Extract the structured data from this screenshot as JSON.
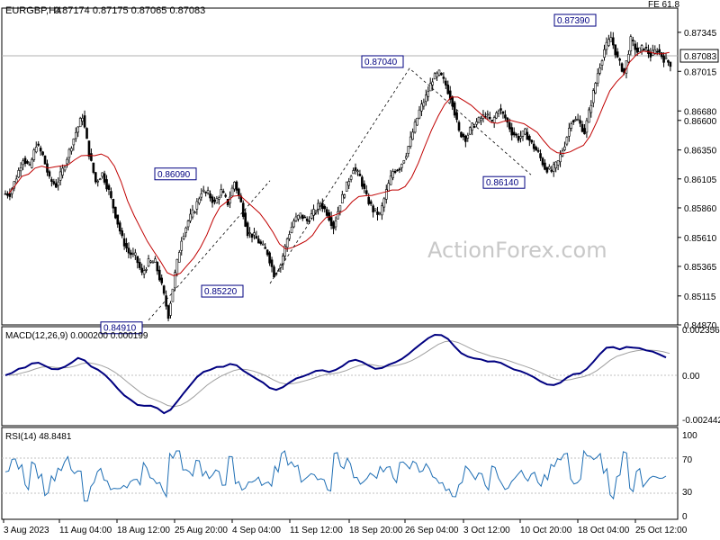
{
  "header": {
    "symbol": "EURGBP,H4",
    "ohlc": "0.87174 0.87175 0.87065 0.87083",
    "fe_label": "FE 61.8"
  },
  "watermark": "ActionForex.com",
  "price_axis": {
    "ticks": [
      "0.87345",
      "0.87015",
      "0.86680",
      "0.86600",
      "0.86350",
      "0.86105",
      "0.85860",
      "0.85610",
      "0.85365",
      "0.85115",
      "0.84870"
    ],
    "tick_values": [
      0.87345,
      0.87015,
      0.8668,
      0.866,
      0.8635,
      0.86105,
      0.8586,
      0.8561,
      0.85365,
      0.85115,
      0.8487
    ],
    "current_price": "0.87083",
    "reference_line": 0.87083
  },
  "date_axis": {
    "labels": [
      "3 Aug 2023",
      "11 Aug 04:00",
      "18 Aug 12:00",
      "25 Aug 20:00",
      "4 Sep 04:00",
      "11 Sep 12:00",
      "18 Sep 20:00",
      "26 Sep 04:00",
      "3 Oct 12:00",
      "10 Oct 20:00",
      "18 Oct 04:00",
      "25 Oct 12:00"
    ]
  },
  "annotations": [
    {
      "text": "0.84910",
      "price": 0.8491
    },
    {
      "text": "0.86090",
      "price": 0.8609
    },
    {
      "text": "0.85220",
      "price": 0.8522
    },
    {
      "text": "0.87040",
      "price": 0.8704
    },
    {
      "text": "0.86140",
      "price": 0.8614
    },
    {
      "text": "0.87390",
      "price": 0.8739
    }
  ],
  "macd": {
    "label": "MACD(12,26,9) 0.000200 0.000199",
    "ticks": [
      "0.002356",
      "0.00",
      "-0.002442"
    ]
  },
  "rsi": {
    "label": "RSI(14) 48.8481",
    "ticks": [
      "100",
      "70",
      "30",
      "0"
    ]
  },
  "colors": {
    "ma": "#c00000",
    "macd": "#000080",
    "signal": "#a0a0a0",
    "rsi": "#1e6eb4",
    "candle": "#000000",
    "annotation": "#000080"
  },
  "chart_data": {
    "type": "candlestick",
    "title": "EURGBP,H4",
    "ylim": [
      0.8487,
      0.8755
    ],
    "swing_points": [
      {
        "label": "0.84910",
        "y": 0.8491
      },
      {
        "label": "0.86090",
        "y": 0.8609
      },
      {
        "label": "0.85220",
        "y": 0.8522
      },
      {
        "label": "0.87040",
        "y": 0.8704
      },
      {
        "label": "0.86140",
        "y": 0.8614
      },
      {
        "label": "0.87390",
        "y": 0.8739
      }
    ],
    "close_path": [
      0.8598,
      0.8612,
      0.8628,
      0.862,
      0.864,
      0.863,
      0.861,
      0.8605,
      0.8618,
      0.8634,
      0.865,
      0.8664,
      0.8632,
      0.8608,
      0.8615,
      0.86,
      0.858,
      0.856,
      0.8548,
      0.8545,
      0.853,
      0.854,
      0.854,
      0.852,
      0.8495,
      0.853,
      0.856,
      0.8575,
      0.8585,
      0.86,
      0.8598,
      0.859,
      0.86,
      0.859,
      0.8608,
      0.859,
      0.8565,
      0.8562,
      0.8555,
      0.8548,
      0.853,
      0.8538,
      0.856,
      0.8575,
      0.858,
      0.8575,
      0.8582,
      0.859,
      0.8582,
      0.857,
      0.859,
      0.8605,
      0.862,
      0.8612,
      0.8595,
      0.8584,
      0.858,
      0.86,
      0.8617,
      0.862,
      0.8632,
      0.865,
      0.8668,
      0.868,
      0.8695,
      0.87,
      0.869,
      0.8675,
      0.865,
      0.8645,
      0.8655,
      0.866,
      0.8665,
      0.8658,
      0.867,
      0.8662,
      0.865,
      0.8645,
      0.865,
      0.864,
      0.8632,
      0.862,
      0.8617,
      0.8625,
      0.864,
      0.866,
      0.866,
      0.865,
      0.8675,
      0.87,
      0.872,
      0.873,
      0.8712,
      0.87,
      0.8728,
      0.8718,
      0.8722,
      0.8715,
      0.872,
      0.8712,
      0.8708
    ]
  }
}
